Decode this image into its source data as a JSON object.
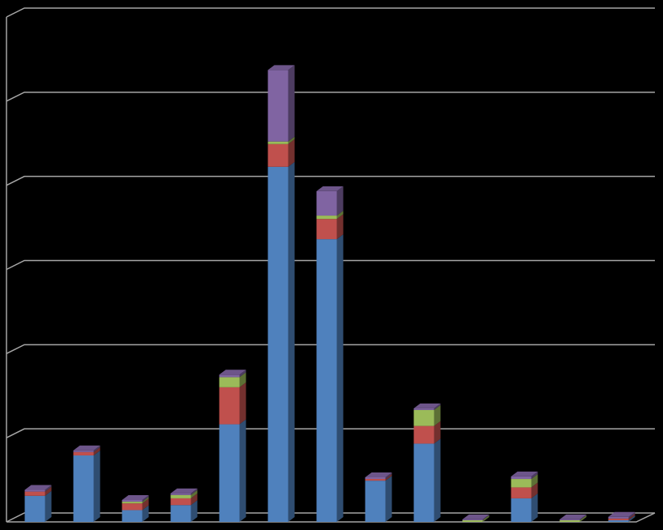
{
  "chart_data": {
    "type": "bar",
    "stacked": true,
    "three_d": true,
    "categories": [
      null,
      null,
      null,
      null,
      null,
      null,
      null,
      null,
      null,
      null,
      null,
      null,
      null
    ],
    "series": [
      {
        "color": "#4f81bd",
        "values": [
          3.1,
          7.9,
          1.4,
          2.0,
          11.6,
          42.2,
          33.6,
          4.9,
          9.3,
          0,
          2.8,
          0,
          0.2
        ]
      },
      {
        "color": "#c0504d",
        "values": [
          0.5,
          0.4,
          0.8,
          0.8,
          4.4,
          2.7,
          2.4,
          0.2,
          2.1,
          0,
          1.3,
          0,
          0.2
        ]
      },
      {
        "color": "#9bbb59",
        "values": [
          0,
          0,
          0.2,
          0.4,
          1.2,
          0.3,
          0.4,
          0,
          1.9,
          0.2,
          1.0,
          0.2,
          0
        ]
      },
      {
        "color": "#8064a2",
        "values": [
          0.2,
          0.2,
          0.2,
          0.2,
          0.3,
          8.5,
          2.9,
          0.2,
          0.2,
          0.1,
          0.3,
          0.1,
          0.2
        ]
      }
    ],
    "ylim": [
      0,
      60
    ],
    "yticks": [
      0,
      10,
      20,
      30,
      40,
      50,
      60
    ],
    "grid": true,
    "background": "#000000",
    "grid_color": "#a6a6a6"
  }
}
